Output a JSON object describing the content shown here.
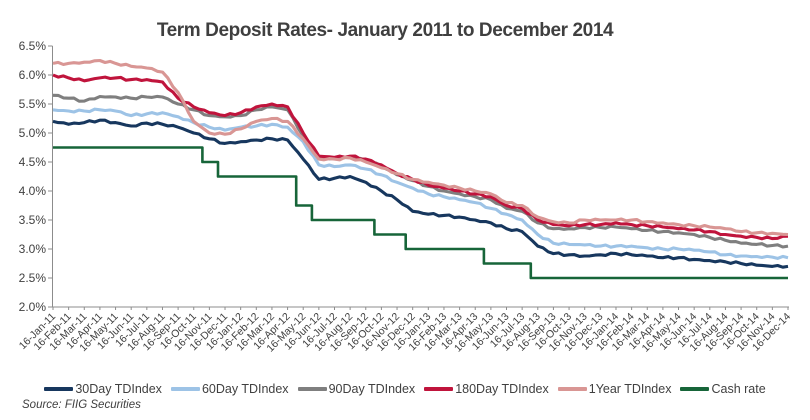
{
  "source": "Source: FIIG Securities",
  "axis_color": "#8c8c8c",
  "text_color": "#404040",
  "chart_data": {
    "type": "line",
    "title": "Term Deposit Rates- January 2011 to December 2014",
    "xlabel": "",
    "ylabel": "",
    "ylim": [
      2.0,
      6.5
    ],
    "grid": false,
    "legend_position": "bottom",
    "y_ticks": [
      "6.5%",
      "6.0%",
      "5.5%",
      "5.0%",
      "4.5%",
      "4.0%",
      "3.5%",
      "3.0%",
      "2.5%",
      "2.0%"
    ],
    "x_tick_labels": [
      "16-Jan-11",
      "16-Feb-11",
      "16-Mar-11",
      "16-Apr-11",
      "16-May-11",
      "16-Jun-11",
      "16-Jul-11",
      "16-Aug-11",
      "16-Sep-11",
      "16-Oct-11",
      "16-Nov-11",
      "16-Dec-11",
      "16-Jan-12",
      "16-Feb-12",
      "16-Mar-12",
      "16-Apr-12",
      "16-May-12",
      "16-Jun-12",
      "16-Jul-12",
      "16-Aug-12",
      "16-Sep-12",
      "16-Oct-12",
      "16-Nov-12",
      "16-Dec-12",
      "16-Jan-13",
      "16-Feb-13",
      "16-Mar-13",
      "16-Apr-13",
      "16-May-13",
      "16-Jun-13",
      "16-Jul-13",
      "16-Aug-13",
      "16-Sep-13",
      "16-Oct-13",
      "16-Nov-13",
      "16-Dec-13",
      "16-Jan-14",
      "16-Feb-14",
      "16-Mar-14",
      "16-Apr-14",
      "16-May-14",
      "16-Jun-14",
      "16-Jul-14",
      "16-Aug-14",
      "16-Sep-14",
      "16-Oct-14",
      "16-Nov-14",
      "16-Dec-14"
    ],
    "series": [
      {
        "name": "30Day TDIndex",
        "color": "#17375E",
        "step": false,
        "values": [
          5.2,
          5.15,
          5.18,
          5.22,
          5.18,
          5.12,
          5.17,
          5.15,
          5.1,
          5.0,
          4.9,
          4.82,
          4.85,
          4.88,
          4.9,
          4.88,
          4.55,
          4.2,
          4.22,
          4.25,
          4.15,
          4.0,
          3.85,
          3.65,
          3.6,
          3.58,
          3.55,
          3.5,
          3.45,
          3.35,
          3.3,
          3.05,
          2.92,
          2.9,
          2.88,
          2.9,
          2.92,
          2.9,
          2.88,
          2.85,
          2.85,
          2.82,
          2.8,
          2.78,
          2.75,
          2.72,
          2.7,
          2.7
        ]
      },
      {
        "name": "60Day TDIndex",
        "color": "#9DC3E6",
        "step": false,
        "values": [
          5.4,
          5.38,
          5.38,
          5.4,
          5.38,
          5.3,
          5.33,
          5.35,
          5.28,
          5.18,
          5.1,
          5.05,
          5.1,
          5.12,
          5.15,
          5.1,
          4.85,
          4.45,
          4.42,
          4.45,
          4.38,
          4.28,
          4.15,
          4.05,
          3.95,
          3.9,
          3.85,
          3.8,
          3.7,
          3.6,
          3.5,
          3.25,
          3.1,
          3.08,
          3.07,
          3.05,
          3.05,
          3.05,
          3.02,
          3.0,
          3.0,
          2.98,
          2.95,
          2.9,
          2.88,
          2.87,
          2.86,
          2.85
        ]
      },
      {
        "name": "90Day TDIndex",
        "color": "#7F7F7F",
        "step": false,
        "values": [
          5.65,
          5.6,
          5.55,
          5.63,
          5.62,
          5.6,
          5.62,
          5.62,
          5.5,
          5.4,
          5.3,
          5.28,
          5.3,
          5.4,
          5.45,
          5.4,
          4.95,
          4.58,
          4.56,
          4.58,
          4.53,
          4.43,
          4.28,
          4.18,
          4.08,
          4.0,
          3.95,
          3.9,
          3.85,
          3.7,
          3.65,
          3.45,
          3.35,
          3.35,
          3.37,
          3.37,
          3.38,
          3.35,
          3.32,
          3.3,
          3.28,
          3.25,
          3.2,
          3.15,
          3.1,
          3.08,
          3.06,
          3.05
        ]
      },
      {
        "name": "180Day TDIndex",
        "color": "#C0143C",
        "step": false,
        "values": [
          6.0,
          5.95,
          5.9,
          5.95,
          5.95,
          5.92,
          5.92,
          5.88,
          5.6,
          5.45,
          5.35,
          5.3,
          5.35,
          5.45,
          5.5,
          5.45,
          5.0,
          4.6,
          4.58,
          4.6,
          4.55,
          4.45,
          4.3,
          4.2,
          4.1,
          4.05,
          4.0,
          3.95,
          3.9,
          3.75,
          3.7,
          3.5,
          3.42,
          3.4,
          3.42,
          3.42,
          3.45,
          3.42,
          3.4,
          3.38,
          3.35,
          3.33,
          3.3,
          3.25,
          3.22,
          3.2,
          3.18,
          3.22
        ]
      },
      {
        "name": "1Year TDIndex",
        "color": "#D99694",
        "step": false,
        "values": [
          6.2,
          6.2,
          6.22,
          6.25,
          6.2,
          6.15,
          6.12,
          6.05,
          5.7,
          5.2,
          5.0,
          4.98,
          5.07,
          5.2,
          5.25,
          5.2,
          4.9,
          4.55,
          4.55,
          4.57,
          4.5,
          4.4,
          4.3,
          4.2,
          4.15,
          4.1,
          4.05,
          4.0,
          3.95,
          3.8,
          3.75,
          3.55,
          3.47,
          3.45,
          3.5,
          3.5,
          3.5,
          3.5,
          3.47,
          3.45,
          3.42,
          3.4,
          3.38,
          3.35,
          3.3,
          3.28,
          3.27,
          3.25
        ]
      },
      {
        "name": "Cash rate",
        "color": "#176539",
        "step": true,
        "values": [
          4.75,
          4.75,
          4.75,
          4.75,
          4.75,
          4.75,
          4.75,
          4.75,
          4.75,
          4.75,
          4.5,
          4.25,
          4.25,
          4.25,
          4.25,
          4.25,
          3.75,
          3.5,
          3.5,
          3.5,
          3.5,
          3.25,
          3.25,
          3.0,
          3.0,
          3.0,
          3.0,
          3.0,
          2.75,
          2.75,
          2.75,
          2.5,
          2.5,
          2.5,
          2.5,
          2.5,
          2.5,
          2.5,
          2.5,
          2.5,
          2.5,
          2.5,
          2.5,
          2.5,
          2.5,
          2.5,
          2.5,
          2.5
        ]
      }
    ]
  }
}
